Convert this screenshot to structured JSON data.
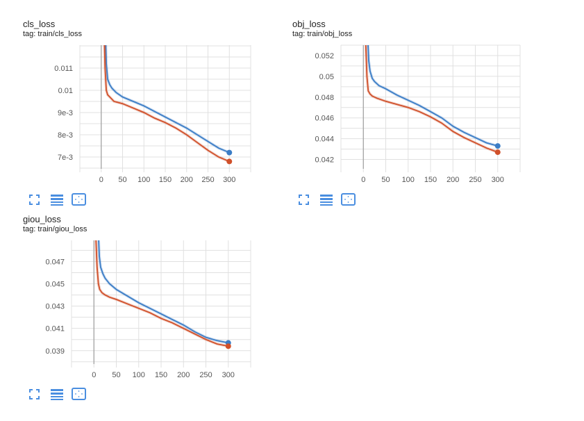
{
  "colors": {
    "series_blue": "#3b7dc6",
    "series_red": "#d0502a",
    "grid": "#e0e0e0",
    "zero_axis": "#9e9e9e",
    "icon": "#4a8ee0"
  },
  "toolbar_icons": [
    "fullscreen-icon",
    "list-icon",
    "fit-domain-icon"
  ],
  "chart_data": [
    {
      "type": "line",
      "title": "cls_loss",
      "tag": "tag: train/cls_loss",
      "xlim": [
        -50,
        350
      ],
      "ylim": [
        0.00647,
        0.01203
      ],
      "xticks": [
        0,
        50,
        100,
        150,
        200,
        250,
        300
      ],
      "xtick_labels": [
        "0",
        "50",
        "100",
        "150",
        "200",
        "250",
        "300"
      ],
      "yticks": [
        0.011,
        0.01,
        0.009,
        0.008,
        0.007
      ],
      "ytick_labels": [
        "0.011",
        "0.01",
        "9e-3",
        "8e-3",
        "7e-3"
      ],
      "grid": true,
      "series": [
        {
          "color": "#3b7dc6",
          "x": [
            10,
            12,
            15,
            20,
            25,
            35,
            50,
            75,
            100,
            125,
            150,
            175,
            200,
            225,
            250,
            275,
            300
          ],
          "y": [
            0.0125,
            0.0112,
            0.0105,
            0.01025,
            0.0101,
            0.0099,
            0.0097,
            0.0095,
            0.0093,
            0.00905,
            0.0088,
            0.00855,
            0.0083,
            0.008,
            0.0077,
            0.0074,
            0.0072
          ]
        },
        {
          "color": "#d0502a",
          "x": [
            7,
            9,
            12,
            15,
            20,
            30,
            50,
            75,
            100,
            125,
            150,
            175,
            200,
            225,
            250,
            275,
            300
          ],
          "y": [
            0.0125,
            0.011,
            0.01,
            0.0098,
            0.0097,
            0.0095,
            0.0094,
            0.0092,
            0.009,
            0.00875,
            0.00855,
            0.0083,
            0.008,
            0.00765,
            0.0073,
            0.007,
            0.0068
          ]
        }
      ]
    },
    {
      "type": "line",
      "title": "obj_loss",
      "tag": "tag: train/obj_loss",
      "xlim": [
        -50,
        350
      ],
      "ylim": [
        0.0411,
        0.053
      ],
      "xticks": [
        0,
        50,
        100,
        150,
        200,
        250,
        300
      ],
      "xtick_labels": [
        "0",
        "50",
        "100",
        "150",
        "200",
        "250",
        "300"
      ],
      "yticks": [
        0.052,
        0.05,
        0.048,
        0.046,
        0.044,
        0.042
      ],
      "ytick_labels": [
        "0.052",
        "0.05",
        "0.048",
        "0.046",
        "0.044",
        "0.042"
      ],
      "grid": true,
      "series": [
        {
          "color": "#3b7dc6",
          "x": [
            10,
            12,
            15,
            20,
            25,
            35,
            50,
            75,
            100,
            125,
            150,
            175,
            200,
            225,
            250,
            275,
            300
          ],
          "y": [
            0.0535,
            0.0515,
            0.0505,
            0.0498,
            0.0495,
            0.0491,
            0.0488,
            0.0482,
            0.0477,
            0.0472,
            0.0466,
            0.046,
            0.0452,
            0.0446,
            0.0441,
            0.0436,
            0.0433
          ]
        },
        {
          "color": "#d0502a",
          "x": [
            5,
            8,
            11,
            15,
            20,
            30,
            50,
            75,
            100,
            125,
            150,
            175,
            200,
            225,
            250,
            275,
            300
          ],
          "y": [
            0.0535,
            0.05,
            0.0486,
            0.0483,
            0.0481,
            0.0479,
            0.0476,
            0.0473,
            0.047,
            0.0466,
            0.0461,
            0.0455,
            0.0447,
            0.0441,
            0.0436,
            0.0431,
            0.0427
          ]
        }
      ]
    },
    {
      "type": "line",
      "title": "giou_loss",
      "tag": "tag: train/giou_loss",
      "xlim": [
        -50,
        350
      ],
      "ylim": [
        0.0378,
        0.0489
      ],
      "xticks": [
        0,
        50,
        100,
        150,
        200,
        250,
        300
      ],
      "xtick_labels": [
        "0",
        "50",
        "100",
        "150",
        "200",
        "250",
        "300"
      ],
      "yticks": [
        0.047,
        0.045,
        0.043,
        0.041,
        0.039
      ],
      "ytick_labels": [
        "0.047",
        "0.045",
        "0.043",
        "0.041",
        "0.039"
      ],
      "grid": true,
      "series": [
        {
          "color": "#3b7dc6",
          "x": [
            10,
            12,
            15,
            20,
            25,
            35,
            50,
            75,
            100,
            125,
            150,
            175,
            200,
            225,
            250,
            275,
            300
          ],
          "y": [
            0.0495,
            0.0475,
            0.0465,
            0.0459,
            0.0455,
            0.045,
            0.0445,
            0.0439,
            0.0433,
            0.0428,
            0.0423,
            0.0418,
            0.0413,
            0.0407,
            0.0402,
            0.0399,
            0.0397
          ]
        },
        {
          "color": "#d0502a",
          "x": [
            4,
            7,
            10,
            13,
            18,
            25,
            35,
            50,
            75,
            100,
            125,
            150,
            175,
            200,
            225,
            250,
            275,
            300
          ],
          "y": [
            0.0495,
            0.0465,
            0.045,
            0.0445,
            0.0442,
            0.044,
            0.0438,
            0.0436,
            0.0432,
            0.0428,
            0.0424,
            0.0419,
            0.0415,
            0.041,
            0.0405,
            0.04,
            0.0396,
            0.0394
          ]
        }
      ]
    }
  ]
}
